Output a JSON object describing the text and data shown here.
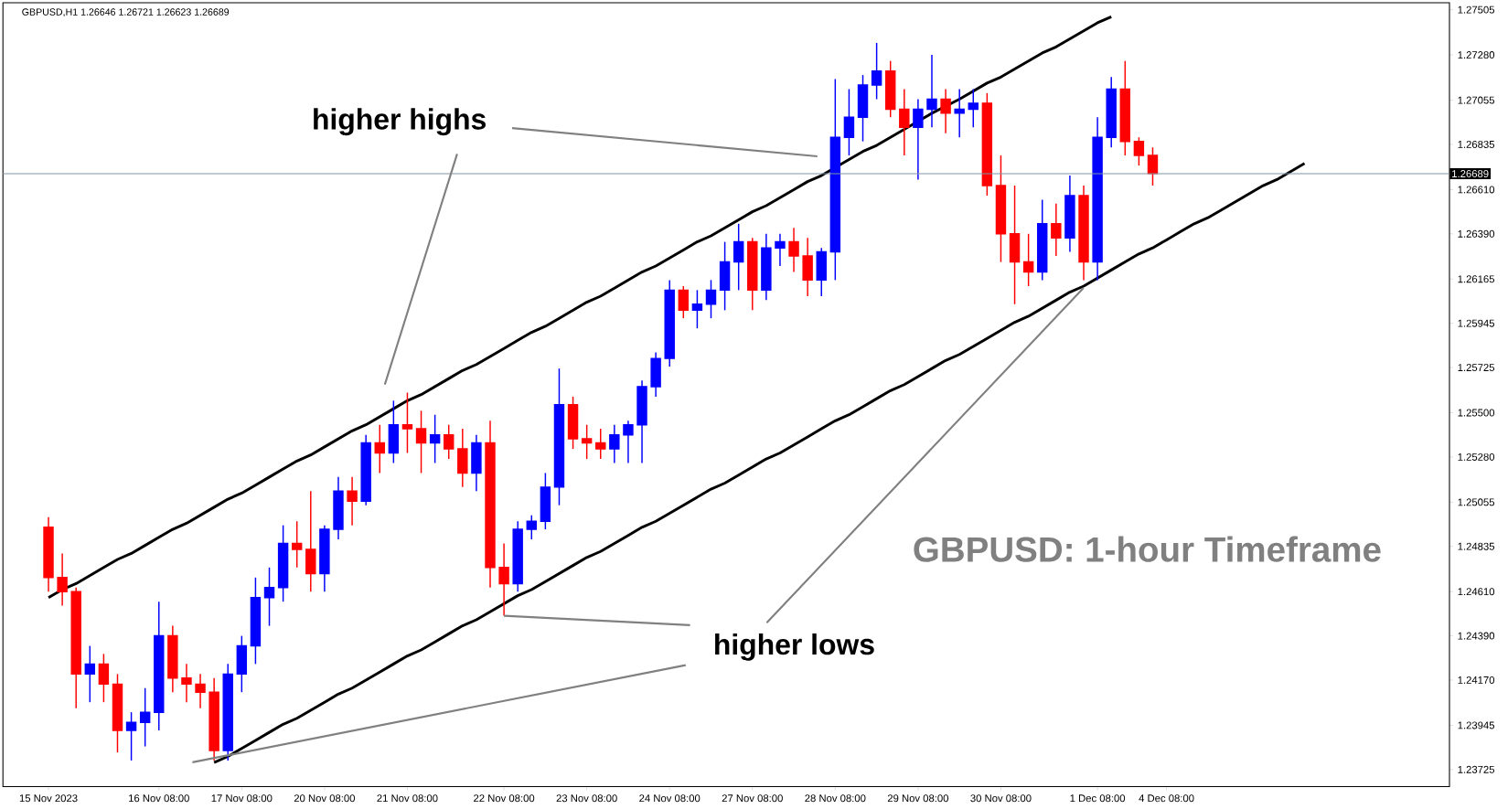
{
  "chart_data": {
    "type": "candlestick",
    "title": "GBPUSD,H1  1.26646 1.26721 1.26623 1.26689",
    "annotations": [
      "higher highs",
      {
        "text": "higher lows",
        "x": "22 Nov 08:00",
        "y": 1.2449
      },
      "GBPUSD: 1-hour Timeframe"
    ],
    "categories": [
      "15 Nov 2023",
      null,
      null,
      null,
      null,
      null,
      null,
      null,
      "16 Nov 08:00",
      null,
      null,
      null,
      null,
      null,
      "17 Nov 08:00",
      null,
      null,
      null,
      null,
      null,
      "20 Nov 08:00",
      null,
      null,
      null,
      null,
      null,
      "21 Nov 08:00",
      null,
      null,
      null,
      null,
      null,
      null,
      "22 Nov 08:00",
      null,
      null,
      null,
      null,
      null,
      "23 Nov 08:00",
      null,
      null,
      null,
      null,
      null,
      "24 Nov 08:00",
      null,
      null,
      null,
      null,
      null,
      "27 Nov 08:00",
      null,
      null,
      null,
      null,
      null,
      "28 Nov 08:00",
      null,
      null,
      null,
      null,
      null,
      "29 Nov 08:00",
      null,
      null,
      null,
      null,
      null,
      "30 Nov 08:00",
      null,
      null,
      null,
      null,
      null,
      null,
      "1 Dec 08:00",
      null,
      null,
      null,
      null,
      "4 Dec 08:00",
      null,
      null,
      null,
      null,
      null,
      null,
      null,
      null,
      null,
      null,
      null,
      null,
      null,
      null,
      null,
      null,
      null,
      null,
      null,
      null
    ],
    "ohlc": [
      [
        1.2493,
        1.2498,
        1.2461,
        1.2468
      ],
      [
        1.2468,
        1.248,
        1.2454,
        1.2461
      ],
      [
        1.2461,
        1.2463,
        1.2403,
        1.242
      ],
      [
        1.242,
        1.2434,
        1.2406,
        1.2425
      ],
      [
        1.2425,
        1.243,
        1.2406,
        1.2415
      ],
      [
        1.2415,
        1.242,
        1.2381,
        1.2392
      ],
      [
        1.2392,
        1.2401,
        1.2377,
        1.2396
      ],
      [
        1.2396,
        1.2413,
        1.2384,
        1.2401
      ],
      [
        1.2401,
        1.2456,
        1.2392,
        1.2439
      ],
      [
        1.2439,
        1.2444,
        1.2411,
        1.2418
      ],
      [
        1.2418,
        1.2425,
        1.2406,
        1.2415
      ],
      [
        1.2415,
        1.242,
        1.2403,
        1.2411
      ],
      [
        1.2411,
        1.2418,
        1.2377,
        1.2382
      ],
      [
        1.2382,
        1.2425,
        1.2377,
        1.242
      ],
      [
        1.242,
        1.2439,
        1.2411,
        1.2434
      ],
      [
        1.2434,
        1.2468,
        1.2425,
        1.2458
      ],
      [
        1.2458,
        1.2473,
        1.2444,
        1.2463
      ],
      [
        1.2463,
        1.2494,
        1.2456,
        1.2485
      ],
      [
        1.2485,
        1.2496,
        1.2473,
        1.2482
      ],
      [
        1.2482,
        1.2511,
        1.2461,
        1.247
      ],
      [
        1.247,
        1.2494,
        1.2461,
        1.2492
      ],
      [
        1.2492,
        1.2518,
        1.2487,
        1.2511
      ],
      [
        1.2511,
        1.2518,
        1.2494,
        1.2506
      ],
      [
        1.2506,
        1.2539,
        1.2504,
        1.2535
      ],
      [
        1.2535,
        1.2544,
        1.252,
        1.253
      ],
      [
        1.253,
        1.2556,
        1.2525,
        1.2544
      ],
      [
        1.2544,
        1.256,
        1.253,
        1.2542
      ],
      [
        1.2542,
        1.2551,
        1.252,
        1.2535
      ],
      [
        1.2535,
        1.2549,
        1.2525,
        1.2539
      ],
      [
        1.2539,
        1.2544,
        1.2527,
        1.2532
      ],
      [
        1.2532,
        1.2542,
        1.2513,
        1.252
      ],
      [
        1.252,
        1.2539,
        1.2511,
        1.2535
      ],
      [
        1.2535,
        1.2546,
        1.2463,
        1.2473
      ],
      [
        1.2473,
        1.2485,
        1.2449,
        1.2465
      ],
      [
        1.2465,
        1.2496,
        1.2461,
        1.2492
      ],
      [
        1.2492,
        1.2499,
        1.2487,
        1.2496
      ],
      [
        1.2496,
        1.252,
        1.2492,
        1.2513
      ],
      [
        1.2513,
        1.2572,
        1.2504,
        1.2554
      ],
      [
        1.2554,
        1.2558,
        1.2532,
        1.2537
      ],
      [
        1.2537,
        1.2544,
        1.2527,
        1.2535
      ],
      [
        1.2535,
        1.2542,
        1.2527,
        1.2532
      ],
      [
        1.2532,
        1.2544,
        1.2525,
        1.2539
      ],
      [
        1.2539,
        1.2546,
        1.2525,
        1.2544
      ],
      [
        1.2544,
        1.2566,
        1.2525,
        1.2563
      ],
      [
        1.2563,
        1.258,
        1.2558,
        1.2577
      ],
      [
        1.2577,
        1.2616,
        1.2573,
        1.2611
      ],
      [
        1.2611,
        1.2613,
        1.2597,
        1.2601
      ],
      [
        1.2601,
        1.2611,
        1.2592,
        1.2604
      ],
      [
        1.2604,
        1.2616,
        1.2597,
        1.2611
      ],
      [
        1.2611,
        1.2635,
        1.2601,
        1.2625
      ],
      [
        1.2625,
        1.2644,
        1.2611,
        1.2635
      ],
      [
        1.2635,
        1.2637,
        1.2601,
        1.2611
      ],
      [
        1.2611,
        1.2639,
        1.2606,
        1.2632
      ],
      [
        1.2632,
        1.2639,
        1.2623,
        1.2635
      ],
      [
        1.2635,
        1.2642,
        1.262,
        1.2628
      ],
      [
        1.2628,
        1.2637,
        1.2608,
        1.2616
      ],
      [
        1.2616,
        1.2632,
        1.2608,
        1.263
      ],
      [
        1.263,
        1.2716,
        1.2616,
        1.2687
      ],
      [
        1.2687,
        1.2711,
        1.2678,
        1.2697
      ],
      [
        1.2697,
        1.2718,
        1.2685,
        1.2713
      ],
      [
        1.2713,
        1.2734,
        1.2706,
        1.272
      ],
      [
        1.272,
        1.2725,
        1.2697,
        1.2701
      ],
      [
        1.2701,
        1.2711,
        1.2678,
        1.2692
      ],
      [
        1.2692,
        1.2706,
        1.2666,
        1.2701
      ],
      [
        1.2701,
        1.2728,
        1.2692,
        1.2706
      ],
      [
        1.2706,
        1.2711,
        1.2689,
        1.2699
      ],
      [
        1.2699,
        1.2711,
        1.2687,
        1.2701
      ],
      [
        1.2701,
        1.2711,
        1.2692,
        1.2704
      ],
      [
        1.2704,
        1.2709,
        1.2658,
        1.2663
      ],
      [
        1.2663,
        1.2678,
        1.2625,
        1.2639
      ],
      [
        1.2639,
        1.2663,
        1.2604,
        1.2625
      ],
      [
        1.2625,
        1.2639,
        1.2613,
        1.262
      ],
      [
        1.262,
        1.2656,
        1.2616,
        1.2644
      ],
      [
        1.2644,
        1.2654,
        1.2628,
        1.2637
      ],
      [
        1.2637,
        1.2668,
        1.263,
        1.2658
      ],
      [
        1.2658,
        1.2663,
        1.2616,
        1.2625
      ],
      [
        1.2625,
        1.2697,
        1.2616,
        1.2687
      ],
      [
        1.2687,
        1.2717,
        1.2682,
        1.2711
      ],
      [
        1.2711,
        1.2725,
        1.2678,
        1.2685
      ],
      [
        1.2685,
        1.2687,
        1.2673,
        1.2678
      ],
      [
        1.2678,
        1.2682,
        1.2663,
        1.2669
      ],
      null,
      null,
      null,
      null,
      null,
      null,
      null,
      null,
      null,
      null,
      null,
      null,
      null,
      null,
      null,
      null,
      null,
      null,
      null,
      null,
      null
    ],
    "colors": [
      "#ff0000",
      "#ff0000",
      "#ff0000",
      "#0000ff",
      "#ff0000",
      "#ff0000",
      "#0000ff",
      "#0000ff",
      "#0000ff",
      "#ff0000",
      "#ff0000",
      "#ff0000",
      "#ff0000",
      "#0000ff",
      "#0000ff",
      "#0000ff",
      "#0000ff",
      "#0000ff",
      "#ff0000",
      "#ff0000",
      "#0000ff",
      "#0000ff",
      "#ff0000",
      "#0000ff",
      "#ff0000",
      "#0000ff",
      "#ff0000",
      "#ff0000",
      "#0000ff",
      "#ff0000",
      "#ff0000",
      "#0000ff",
      "#ff0000",
      "#ff0000",
      "#0000ff",
      "#0000ff",
      "#0000ff",
      "#0000ff",
      "#ff0000",
      "#ff0000",
      "#ff0000",
      "#0000ff",
      "#0000ff",
      "#0000ff",
      "#0000ff",
      "#0000ff",
      "#ff0000",
      "#0000ff",
      "#0000ff",
      "#0000ff",
      "#0000ff",
      "#ff0000",
      "#0000ff",
      "#0000ff",
      "#ff0000",
      "#ff0000",
      "#0000ff",
      "#0000ff",
      "#0000ff",
      "#0000ff",
      "#0000ff",
      "#ff0000",
      "#ff0000",
      "#0000ff",
      "#0000ff",
      "#ff0000",
      "#0000ff",
      "#0000ff",
      "#ff0000",
      "#ff0000",
      "#ff0000",
      "#ff0000",
      "#0000ff",
      "#ff0000",
      "#0000ff",
      "#ff0000",
      "#0000ff",
      "#0000ff",
      "#ff0000",
      "#ff0000",
      "#ff0000",
      null,
      null,
      null,
      null,
      null,
      null,
      null,
      null,
      null,
      null,
      null,
      null,
      null,
      null,
      null,
      null,
      null,
      null,
      null,
      null,
      null
    ],
    "series": [
      {
        "type": "line",
        "color": "#000000",
        "values": [
          1.2458,
          1.2462,
          1.2465,
          1.2469,
          1.2473,
          1.2477,
          1.248,
          1.2484,
          1.2488,
          1.2492,
          1.2495,
          1.2499,
          1.2503,
          1.2507,
          1.251,
          1.2514,
          1.2518,
          1.2522,
          1.2526,
          1.2529,
          1.2533,
          1.2537,
          1.2541,
          1.2544,
          1.2548,
          1.2552,
          1.2556,
          1.2559,
          1.2563,
          1.2567,
          1.2571,
          1.2574,
          1.2578,
          1.2582,
          1.2586,
          1.259,
          1.2593,
          1.2597,
          1.2601,
          1.2605,
          1.2608,
          1.2612,
          1.2616,
          1.262,
          1.2623,
          1.2627,
          1.2631,
          1.2635,
          1.2638,
          1.2642,
          1.2646,
          1.265,
          1.2653,
          1.2657,
          1.2661,
          1.2665,
          1.2668,
          null,
          1.2676,
          1.268,
          1.2683,
          1.2687,
          1.2691,
          null,
          1.2699,
          null,
          1.2706,
          1.271,
          1.2714,
          1.2717,
          1.2721,
          1.2725,
          1.2729,
          1.2732,
          1.2736,
          1.274,
          1.2744,
          1.2747,
          null,
          null,
          null,
          null,
          null,
          null,
          null,
          null,
          null,
          null,
          null,
          null,
          null,
          null,
          null,
          null,
          null,
          null,
          null,
          null,
          null,
          null,
          null,
          null
        ]
      },
      {
        "type": "line",
        "color": "#000000",
        "values": [
          null,
          null,
          null,
          null,
          null,
          null,
          null,
          null,
          null,
          null,
          null,
          null,
          1.2376,
          1.2379,
          1.2383,
          1.2387,
          1.2391,
          1.2395,
          1.2398,
          1.2402,
          1.2406,
          1.241,
          1.2413,
          1.2417,
          1.2421,
          1.2425,
          1.2429,
          1.2432,
          1.2436,
          1.244,
          1.2444,
          1.2447,
          1.2451,
          1.2455,
          1.2459,
          1.2462,
          1.2466,
          1.247,
          1.2474,
          1.2478,
          1.2481,
          1.2485,
          1.2489,
          1.2493,
          1.2496,
          1.25,
          1.2504,
          1.2508,
          1.2512,
          1.2515,
          1.2519,
          1.2523,
          1.2527,
          1.253,
          1.2534,
          1.2538,
          1.2542,
          1.2546,
          1.2549,
          1.2553,
          1.2557,
          1.2561,
          1.2564,
          1.2568,
          1.2572,
          1.2576,
          1.2579,
          1.2583,
          1.2587,
          1.2591,
          1.2595,
          1.2598,
          1.2602,
          1.2606,
          1.261,
          1.2613,
          1.2617,
          1.2621,
          1.2625,
          1.2629,
          1.2632,
          1.2636,
          1.264,
          1.2644,
          1.2647,
          1.2651,
          1.2655,
          1.2659,
          1.2663,
          1.2666,
          1.267,
          1.2674,
          null,
          null,
          null,
          null,
          null,
          null,
          null,
          null,
          null,
          null
        ]
      }
    ],
    "ref_lines": [
      {
        "axis": "y",
        "value": 1.26689,
        "label": "1.26689",
        "color": "#8095a8"
      }
    ],
    "ylim": [
      1.2364,
      1.2754
    ],
    "yticks": [
      {
        "value": 1.27505,
        "label": "1.27505"
      },
      {
        "value": 1.2728,
        "label": "1.27280"
      },
      {
        "value": 1.27055,
        "label": "1.27055"
      },
      {
        "value": 1.26835,
        "label": "1.26835"
      },
      {
        "value": 1.2661,
        "label": "1.26610"
      },
      {
        "value": 1.2639,
        "label": "1.26390"
      },
      {
        "value": 1.26165,
        "label": "1.26165"
      },
      {
        "value": 1.25945,
        "label": "1.25945"
      },
      {
        "value": 1.25725,
        "label": "1.25725"
      },
      {
        "value": 1.255,
        "label": "1.25500"
      },
      {
        "value": 1.2528,
        "label": "1.25280"
      },
      {
        "value": 1.25055,
        "label": "1.25055"
      },
      {
        "value": 1.24835,
        "label": "1.24835"
      },
      {
        "value": 1.2461,
        "label": "1.24610"
      },
      {
        "value": 1.2439,
        "label": "1.24390"
      },
      {
        "value": 1.2417,
        "label": "1.24170"
      },
      {
        "value": 1.23945,
        "label": "1.23945"
      },
      {
        "value": 1.23725,
        "label": "1.23725"
      }
    ]
  }
}
